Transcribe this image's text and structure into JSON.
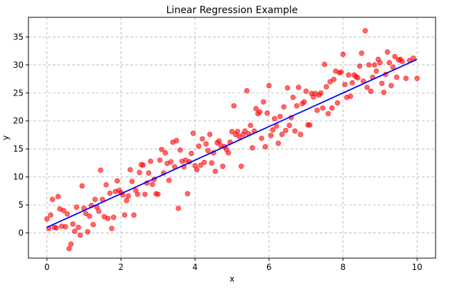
{
  "chart_data": {
    "type": "scatter",
    "title": "Linear Regression Example",
    "xlabel": "x",
    "ylabel": "y",
    "xlim": [
      -0.5,
      10.5
    ],
    "ylim": [
      -4.5,
      38.5
    ],
    "xticks": [
      0,
      2,
      4,
      6,
      8,
      10
    ],
    "yticks": [
      0,
      5,
      10,
      15,
      20,
      25,
      30,
      35
    ],
    "grid": true,
    "series": [
      {
        "kind": "scatter",
        "color": "#ff0000",
        "points": [
          [
            0.0,
            2.5
          ],
          [
            0.05,
            0.8
          ],
          [
            0.1,
            3.2
          ],
          [
            0.15,
            6.0
          ],
          [
            0.2,
            1.0
          ],
          [
            0.25,
            0.9
          ],
          [
            0.3,
            6.5
          ],
          [
            0.35,
            4.3
          ],
          [
            0.4,
            1.2
          ],
          [
            0.45,
            4.0
          ],
          [
            0.5,
            1.1
          ],
          [
            0.55,
            3.4
          ],
          [
            0.6,
            -2.8
          ],
          [
            0.65,
            -2.0
          ],
          [
            0.7,
            1.6
          ],
          [
            0.75,
            0.3
          ],
          [
            0.8,
            4.6
          ],
          [
            0.85,
            1.0
          ],
          [
            0.9,
            -0.4
          ],
          [
            0.95,
            8.4
          ],
          [
            1.0,
            4.4
          ],
          [
            1.05,
            3.5
          ],
          [
            1.1,
            0.2
          ],
          [
            1.15,
            3.0
          ],
          [
            1.2,
            4.9
          ],
          [
            1.25,
            1.5
          ],
          [
            1.3,
            6.0
          ],
          [
            1.35,
            4.6
          ],
          [
            1.4,
            3.9
          ],
          [
            1.45,
            11.2
          ],
          [
            1.5,
            6.0
          ],
          [
            1.55,
            2.9
          ],
          [
            1.6,
            8.6
          ],
          [
            1.65,
            2.6
          ],
          [
            1.7,
            7.1
          ],
          [
            1.75,
            0.8
          ],
          [
            1.8,
            2.8
          ],
          [
            1.85,
            7.4
          ],
          [
            1.9,
            9.3
          ],
          [
            1.95,
            7.6
          ],
          [
            2.0,
            7.2
          ],
          [
            2.05,
            6.8
          ],
          [
            2.1,
            3.2
          ],
          [
            2.15,
            5.8
          ],
          [
            2.2,
            6.6
          ],
          [
            2.25,
            11.3
          ],
          [
            2.3,
            9.2
          ],
          [
            2.35,
            3.2
          ],
          [
            2.4,
            7.6
          ],
          [
            2.45,
            6.9
          ],
          [
            2.5,
            10.8
          ],
          [
            2.55,
            12.2
          ],
          [
            2.6,
            12.1
          ],
          [
            2.65,
            6.9
          ],
          [
            2.7,
            8.9
          ],
          [
            2.75,
            10.7
          ],
          [
            2.8,
            12.8
          ],
          [
            2.85,
            8.7
          ],
          [
            2.9,
            9.6
          ],
          [
            2.95,
            7.0
          ],
          [
            3.0,
            6.9
          ],
          [
            3.05,
            13.0
          ],
          [
            3.1,
            14.9
          ],
          [
            3.15,
            10.7
          ],
          [
            3.2,
            14.3
          ],
          [
            3.25,
            12.4
          ],
          [
            3.3,
            9.4
          ],
          [
            3.35,
            12.7
          ],
          [
            3.4,
            16.2
          ],
          [
            3.45,
            11.8
          ],
          [
            3.5,
            16.5
          ],
          [
            3.55,
            4.4
          ],
          [
            3.6,
            14.8
          ],
          [
            3.65,
            12.8
          ],
          [
            3.7,
            11.8
          ],
          [
            3.75,
            13.0
          ],
          [
            3.8,
            7.0
          ],
          [
            3.85,
            12.7
          ],
          [
            3.9,
            14.2
          ],
          [
            3.95,
            17.8
          ],
          [
            4.0,
            12.0
          ],
          [
            4.05,
            11.3
          ],
          [
            4.1,
            15.5
          ],
          [
            4.15,
            12.1
          ],
          [
            4.2,
            16.8
          ],
          [
            4.25,
            12.6
          ],
          [
            4.3,
            15.9
          ],
          [
            4.35,
            14.7
          ],
          [
            4.4,
            17.6
          ],
          [
            4.45,
            12.5
          ],
          [
            4.5,
            14.3
          ],
          [
            4.55,
            11.0
          ],
          [
            4.6,
            16.1
          ],
          [
            4.65,
            16.4
          ],
          [
            4.7,
            15.6
          ],
          [
            4.75,
            11.9
          ],
          [
            4.8,
            15.4
          ],
          [
            4.85,
            14.9
          ],
          [
            4.9,
            14.3
          ],
          [
            4.95,
            16.2
          ],
          [
            5.0,
            18.1
          ],
          [
            5.05,
            22.7
          ],
          [
            5.1,
            17.6
          ],
          [
            5.15,
            18.1
          ],
          [
            5.2,
            17.2
          ],
          [
            5.25,
            11.9
          ],
          [
            5.3,
            17.6
          ],
          [
            5.35,
            18.2
          ],
          [
            5.4,
            25.4
          ],
          [
            5.45,
            17.7
          ],
          [
            5.5,
            19.2
          ],
          [
            5.55,
            15.2
          ],
          [
            5.6,
            18.2
          ],
          [
            5.65,
            22.2
          ],
          [
            5.7,
            21.3
          ],
          [
            5.75,
            21.6
          ],
          [
            5.8,
            16.9
          ],
          [
            5.85,
            23.4
          ],
          [
            5.9,
            15.4
          ],
          [
            5.95,
            21.4
          ],
          [
            6.0,
            26.3
          ],
          [
            6.05,
            17.4
          ],
          [
            6.1,
            18.4
          ],
          [
            6.15,
            20.4
          ],
          [
            6.2,
            19.1
          ],
          [
            6.25,
            16.0
          ],
          [
            6.3,
            20.8
          ],
          [
            6.35,
            17.6
          ],
          [
            6.4,
            22.5
          ],
          [
            6.45,
            18.3
          ],
          [
            6.5,
            25.9
          ],
          [
            6.55,
            19.2
          ],
          [
            6.6,
            20.6
          ],
          [
            6.65,
            24.2
          ],
          [
            6.7,
            18.2
          ],
          [
            6.75,
            22.7
          ],
          [
            6.8,
            26.0
          ],
          [
            6.85,
            17.6
          ],
          [
            6.9,
            23.1
          ],
          [
            6.95,
            23.4
          ],
          [
            7.0,
            25.3
          ],
          [
            7.05,
            19.3
          ],
          [
            7.1,
            19.3
          ],
          [
            7.15,
            24.9
          ],
          [
            7.2,
            24.3
          ],
          [
            7.25,
            24.9
          ],
          [
            7.3,
            21.9
          ],
          [
            7.35,
            24.6
          ],
          [
            7.4,
            25.0
          ],
          [
            7.45,
            22.3
          ],
          [
            7.5,
            30.1
          ],
          [
            7.55,
            26.1
          ],
          [
            7.6,
            21.3
          ],
          [
            7.65,
            27.0
          ],
          [
            7.7,
            22.3
          ],
          [
            7.75,
            27.4
          ],
          [
            7.8,
            28.9
          ],
          [
            7.85,
            23.2
          ],
          [
            7.9,
            28.6
          ],
          [
            7.95,
            28.7
          ],
          [
            8.0,
            31.9
          ],
          [
            8.05,
            26.5
          ],
          [
            8.1,
            24.2
          ],
          [
            8.15,
            28.2
          ],
          [
            8.2,
            24.4
          ],
          [
            8.25,
            26.8
          ],
          [
            8.3,
            28.2
          ],
          [
            8.35,
            27.9
          ],
          [
            8.4,
            27.7
          ],
          [
            8.45,
            29.8
          ],
          [
            8.5,
            32.1
          ],
          [
            8.55,
            27.1
          ],
          [
            8.6,
            36.1
          ],
          [
            8.65,
            26.0
          ],
          [
            8.7,
            30.0
          ],
          [
            8.75,
            25.3
          ],
          [
            8.8,
            27.8
          ],
          [
            8.85,
            30.0
          ],
          [
            8.9,
            28.9
          ],
          [
            8.95,
            31.0
          ],
          [
            9.0,
            30.4
          ],
          [
            9.05,
            26.7
          ],
          [
            9.1,
            25.1
          ],
          [
            9.15,
            28.3
          ],
          [
            9.2,
            32.3
          ],
          [
            9.25,
            30.4
          ],
          [
            9.3,
            26.3
          ],
          [
            9.35,
            29.6
          ],
          [
            9.4,
            31.5
          ],
          [
            9.45,
            27.8
          ],
          [
            9.5,
            30.9
          ],
          [
            9.55,
            31.0
          ],
          [
            9.6,
            30.6
          ],
          [
            9.7,
            27.6
          ],
          [
            9.8,
            30.8
          ],
          [
            9.9,
            31.2
          ],
          [
            10.0,
            27.6
          ]
        ]
      },
      {
        "kind": "line",
        "color": "#0000ff",
        "points": [
          [
            0,
            1.0
          ],
          [
            10,
            31.0
          ]
        ]
      }
    ]
  }
}
